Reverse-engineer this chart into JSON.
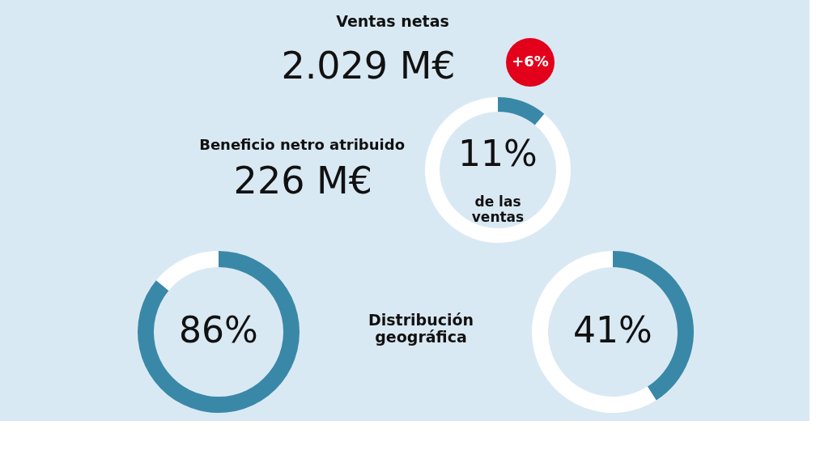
{
  "chart_data": [
    {
      "type": "other",
      "title": "Ventas netas",
      "annotations": [
        "2.029 M€",
        "+6%"
      ]
    },
    {
      "type": "donut",
      "title": "Beneficio netro atribuido",
      "subtitle": "226 M€",
      "categories": [
        null,
        null
      ],
      "values": [
        11,
        89
      ],
      "colors": [
        "#3a88a8",
        "#ffffff"
      ],
      "annotations": [
        "11%",
        "de las ventas"
      ]
    },
    {
      "type": "other",
      "title": "Distribución geográfica"
    },
    {
      "type": "donut",
      "categories": [
        null,
        null
      ],
      "values": [
        86,
        14
      ],
      "colors": [
        "#3a88a8",
        "#ffffff"
      ],
      "annotations": [
        "86%"
      ]
    },
    {
      "type": "donut",
      "categories": [
        null,
        null
      ],
      "values": [
        41,
        59
      ],
      "colors": [
        "#3a88a8",
        "#ffffff"
      ],
      "annotations": [
        "41%"
      ]
    }
  ]
}
